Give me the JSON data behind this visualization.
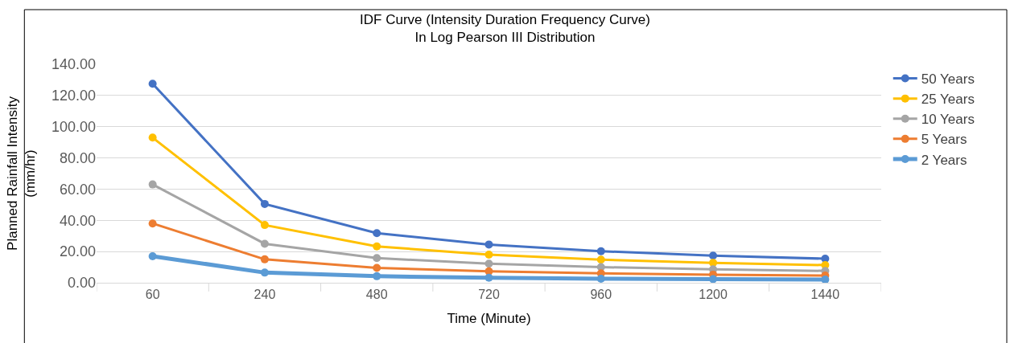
{
  "chart_data": {
    "type": "line",
    "title": "IDF Curve (Intensity Duration Frequency Curve)\nIn Log Pearson III Distribution",
    "xlabel": "Time (Minute)",
    "ylabel": "Planned Rainfall Intensity\n(mm/hr)",
    "categories": [
      "60",
      "240",
      "480",
      "720",
      "960",
      "1200",
      "1440"
    ],
    "series": [
      {
        "name": "50 Years",
        "color": "#4472c4",
        "values": [
          127.5,
          50.5,
          31.8,
          24.5,
          20.2,
          17.4,
          15.4
        ]
      },
      {
        "name": "25 Years",
        "color": "#ffc000",
        "values": [
          93,
          37,
          23.3,
          18,
          14.8,
          12.8,
          11.3
        ]
      },
      {
        "name": "10 Years",
        "color": "#a5a5a5",
        "values": [
          63,
          25,
          15.8,
          12.2,
          10,
          8.6,
          7.6
        ]
      },
      {
        "name": "5 Years",
        "color": "#ed7d31",
        "values": [
          38,
          15,
          9.5,
          7.3,
          6,
          5.2,
          4.6
        ]
      },
      {
        "name": "2 Years",
        "color": "#5b9bd5",
        "values": [
          17,
          6.5,
          4.2,
          3.2,
          2.6,
          2.3,
          2.0
        ]
      }
    ],
    "ylim": [
      0,
      140
    ],
    "yticks": [
      {
        "value": 0,
        "label": "0.00"
      },
      {
        "value": 20,
        "label": "20.00"
      },
      {
        "value": 40,
        "label": "40.00"
      },
      {
        "value": 60,
        "label": "60.00"
      },
      {
        "value": 80,
        "label": "80.00"
      },
      {
        "value": 100,
        "label": "100.00"
      },
      {
        "value": 120,
        "label": "120.00"
      },
      {
        "value": 140,
        "label": "140.00"
      }
    ],
    "grid": "y",
    "legend": "right",
    "marker": "circle",
    "line_style": "solid"
  }
}
